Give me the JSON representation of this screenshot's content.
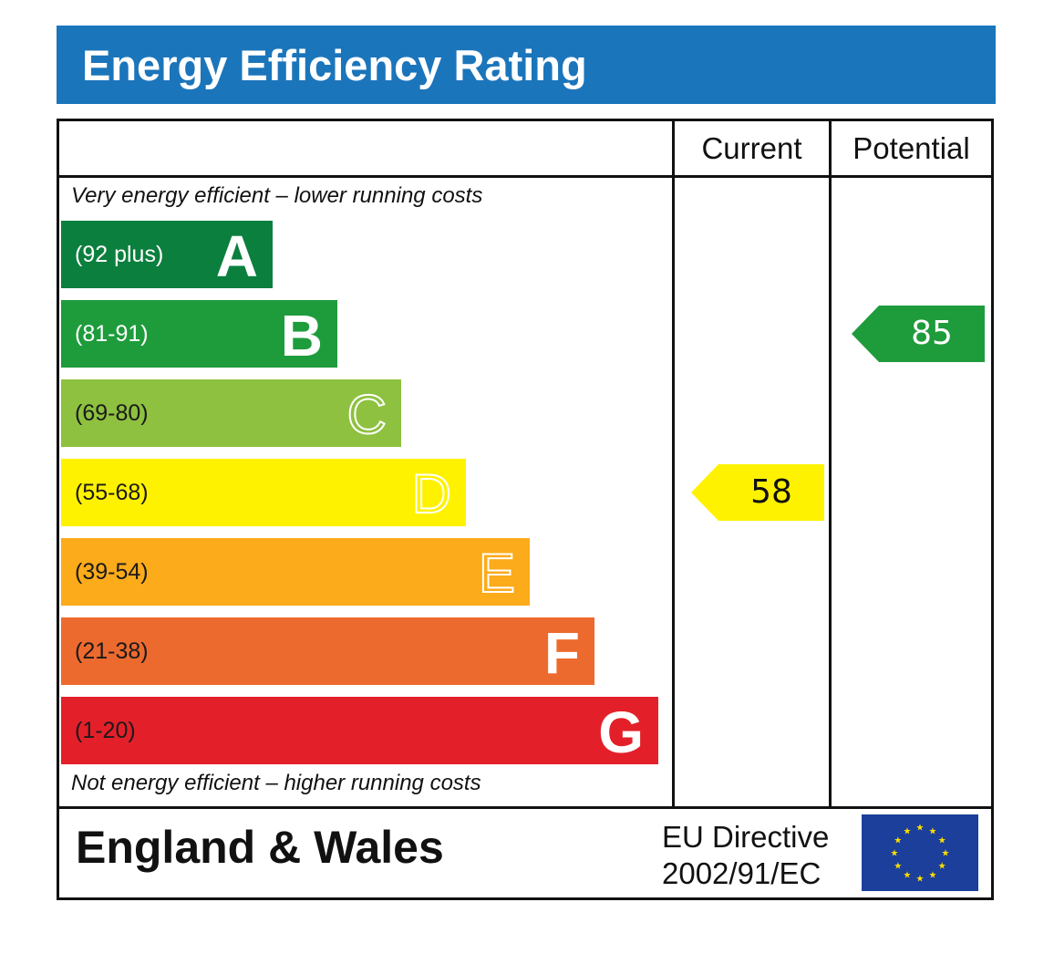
{
  "title": "Energy Efficiency Rating",
  "columns": {
    "current": "Current",
    "potential": "Potential"
  },
  "captions": {
    "top": "Very energy efficient – lower running costs",
    "bottom": "Not energy efficient – higher running costs"
  },
  "footer": {
    "region": "England & Wales",
    "directive_line1": "EU Directive",
    "directive_line2": "2002/91/EC",
    "flag_icon": "eu-flag-icon"
  },
  "chart_data": {
    "type": "bar",
    "title": "Energy Efficiency Rating",
    "bands": [
      {
        "letter": "A",
        "range": "(92 plus)",
        "color": "#0b7f3e",
        "range_color": "#ffffff"
      },
      {
        "letter": "B",
        "range": "(81-91)",
        "color": "#1e9c3c",
        "range_color": "#ffffff"
      },
      {
        "letter": "C",
        "range": "(69-80)",
        "color": "#8dc13f",
        "range_color": "#1a1a1a"
      },
      {
        "letter": "D",
        "range": "(55-68)",
        "color": "#fff200",
        "range_color": "#1a1a1a"
      },
      {
        "letter": "E",
        "range": "(39-54)",
        "color": "#fcab1a",
        "range_color": "#1a1a1a"
      },
      {
        "letter": "F",
        "range": "(21-38)",
        "color": "#ed6a2e",
        "range_color": "#1a1a1a"
      },
      {
        "letter": "G",
        "range": "(1-20)",
        "color": "#e3202a",
        "range_color": "#1a1a1a"
      }
    ],
    "current": {
      "value": 58,
      "band": "D",
      "color": "#fff200"
    },
    "potential": {
      "value": 85,
      "band": "B",
      "color": "#1e9c3c"
    }
  }
}
